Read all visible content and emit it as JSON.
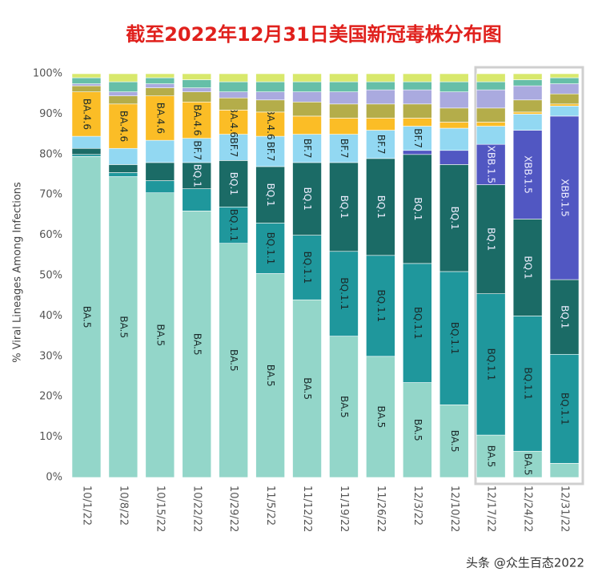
{
  "chart_data": {
    "type": "stacked_bar",
    "title": "截至2022年12月31日美国新冠毒株分布图",
    "ylabel": "% Viral Lineages Among Infections",
    "watermark": "头条 @众生百态2022",
    "categories": [
      "10/1/22",
      "10/8/22",
      "10/15/22",
      "10/22/22",
      "10/29/22",
      "11/5/22",
      "11/12/22",
      "11/19/22",
      "11/26/22",
      "12/3/22",
      "12/10/22",
      "12/17/22",
      "12/24/22",
      "12/31/22"
    ],
    "ylim": [
      0,
      100
    ],
    "yticks": [
      {
        "value": 0,
        "label": "0%"
      },
      {
        "value": 10,
        "label": "10%"
      },
      {
        "value": 20,
        "label": "20%"
      },
      {
        "value": 30,
        "label": "30%"
      },
      {
        "value": 40,
        "label": "40%"
      },
      {
        "value": 50,
        "label": "50%"
      },
      {
        "value": 60,
        "label": "60%"
      },
      {
        "value": 70,
        "label": "70%"
      },
      {
        "value": 80,
        "label": "80%"
      },
      {
        "value": 90,
        "label": "90%"
      },
      {
        "value": 100,
        "label": "100%"
      }
    ],
    "series": [
      {
        "name": "BA.5",
        "color": "#93d6c9",
        "values": [
          79.5,
          74.5,
          70.5,
          66,
          58,
          50.5,
          44,
          35,
          30,
          23.5,
          18,
          10.5,
          6.5,
          3.5
        ]
      },
      {
        "name": "BQ.1.1",
        "color": "#1f979c",
        "values": [
          0.5,
          1,
          3,
          5.5,
          9,
          12.5,
          16,
          21,
          25,
          29.5,
          33,
          35,
          33.5,
          27
        ]
      },
      {
        "name": "BQ.1",
        "color": "#1b6b66",
        "values": [
          1.5,
          2,
          4.5,
          6.5,
          11.5,
          14,
          18,
          22,
          24,
          27,
          26.5,
          27,
          24,
          18.5
        ]
      },
      {
        "name": "XBB.1.5",
        "color": "#5157c2",
        "values": [
          0,
          0,
          0,
          0,
          0,
          0,
          0,
          0,
          0,
          1,
          3.5,
          10,
          22,
          40.5
        ]
      },
      {
        "name": "BF.7",
        "color": "#92d8f2",
        "values": [
          3,
          4,
          5.5,
          6,
          6.5,
          7.5,
          7,
          7,
          7,
          6,
          5.5,
          4.5,
          4,
          2.5
        ]
      },
      {
        "name": "BA.4.6",
        "color": "#fbbd26",
        "values": [
          11,
          11,
          11,
          9,
          6,
          6,
          4.5,
          4,
          3,
          2,
          1.5,
          1,
          0.5,
          0.5
        ]
      },
      {
        "color": "#b4ad4a",
        "values": [
          1.5,
          2,
          2,
          2.5,
          3,
          3,
          3.5,
          3.5,
          3.5,
          3.5,
          3.5,
          3.5,
          3,
          2.5
        ]
      },
      {
        "color": "#aaaadf",
        "values": [
          0.5,
          1,
          1,
          1,
          1.5,
          2,
          2.5,
          3,
          3.5,
          3.5,
          4,
          4.5,
          3.5,
          2.5
        ]
      },
      {
        "color": "#66bfa8",
        "values": [
          1.5,
          2.5,
          1.5,
          2,
          2.5,
          2.5,
          2.5,
          2.5,
          2,
          2,
          2.5,
          2,
          1.5,
          1.5
        ]
      },
      {
        "color": "#d8e86c",
        "values": [
          1,
          2,
          1,
          1.5,
          2,
          2,
          2,
          2,
          2,
          2,
          2,
          2,
          1.5,
          1
        ]
      }
    ]
  }
}
